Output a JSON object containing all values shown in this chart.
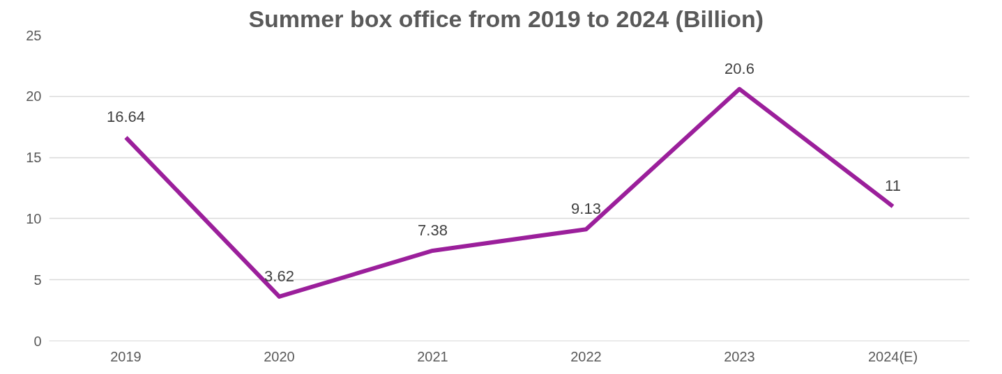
{
  "chart_data": {
    "type": "line",
    "title": "Summer box office from 2019 to 2024  (Billion)",
    "categories": [
      "2019",
      "2020",
      "2021",
      "2022",
      "2023",
      "2024(E)"
    ],
    "series": [
      {
        "color": "#9b1f9b",
        "values": [
          16.64,
          3.62,
          7.38,
          9.13,
          20.6,
          11
        ]
      }
    ],
    "ylim": [
      0,
      25
    ],
    "yticks": [
      0,
      5,
      10,
      15,
      20,
      25
    ],
    "grid": "y",
    "data_labels": true,
    "marker": "none",
    "line_style": "solid"
  }
}
